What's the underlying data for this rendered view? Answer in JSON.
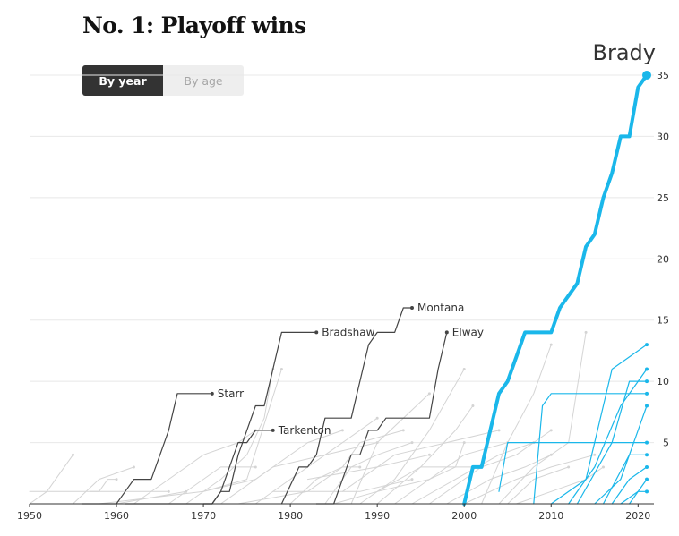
{
  "title": "No. 1: Playoff wins",
  "toggle": {
    "by_year": "By year",
    "by_age": "By age",
    "selected": "By year"
  },
  "colors": {
    "highlight": "#1ab7ea",
    "named": "#444444",
    "background_lines": "#d4d4d4",
    "active_lines": "#1ab7ea"
  },
  "chart_data": {
    "type": "line",
    "xlim": [
      1950,
      2021
    ],
    "ylim": [
      0,
      35
    ],
    "x_ticks": [
      1950,
      1960,
      1970,
      1980,
      1990,
      2000,
      2010,
      2020
    ],
    "y_ticks": [
      5,
      10,
      15,
      20,
      25,
      30,
      35
    ],
    "grid": true,
    "series": [
      {
        "name": "Brady",
        "role": "highlight",
        "x": [
          2000,
          2001,
          2002,
          2003,
          2004,
          2005,
          2006,
          2007,
          2008,
          2009,
          2010,
          2011,
          2012,
          2013,
          2014,
          2015,
          2016,
          2017,
          2018,
          2019,
          2020,
          2021
        ],
        "y": [
          0,
          3,
          3,
          6,
          9,
          10,
          12,
          14,
          14,
          14,
          14,
          16,
          17,
          18,
          21,
          22,
          25,
          27,
          30,
          30,
          34,
          35
        ]
      },
      {
        "name": "Montana",
        "role": "named",
        "x": [
          1979,
          1981,
          1982,
          1983,
          1984,
          1985,
          1986,
          1987,
          1988,
          1989,
          1990,
          1991,
          1992,
          1993,
          1994
        ],
        "y": [
          0,
          3,
          3,
          4,
          7,
          7,
          7,
          7,
          10,
          13,
          14,
          14,
          14,
          16,
          16
        ]
      },
      {
        "name": "Bradshaw",
        "role": "named",
        "x": [
          1970,
          1971,
          1972,
          1973,
          1974,
          1975,
          1976,
          1977,
          1978,
          1979,
          1980,
          1981,
          1982,
          1983
        ],
        "y": [
          0,
          0,
          1,
          1,
          4,
          6,
          8,
          8,
          11,
          14,
          14,
          14,
          14,
          14
        ]
      },
      {
        "name": "Elway",
        "role": "named",
        "x": [
          1983,
          1984,
          1985,
          1986,
          1987,
          1988,
          1989,
          1990,
          1991,
          1992,
          1993,
          1994,
          1995,
          1996,
          1997,
          1998
        ],
        "y": [
          0,
          0,
          0,
          2,
          4,
          4,
          6,
          6,
          7,
          7,
          7,
          7,
          7,
          7,
          11,
          14
        ]
      },
      {
        "name": "Starr",
        "role": "named",
        "x": [
          1956,
          1960,
          1961,
          1962,
          1963,
          1964,
          1965,
          1966,
          1967,
          1968,
          1969,
          1970,
          1971
        ],
        "y": [
          0,
          0,
          1,
          2,
          2,
          2,
          4,
          6,
          9,
          9,
          9,
          9,
          9
        ]
      },
      {
        "name": "Tarkenton",
        "role": "named",
        "x": [
          1961,
          1970,
          1971,
          1972,
          1973,
          1974,
          1975,
          1976,
          1977,
          1978
        ],
        "y": [
          0,
          0,
          0,
          1,
          3,
          5,
          5,
          6,
          6,
          6
        ]
      },
      {
        "role": "background",
        "x": [
          1950,
          1952,
          1953,
          1954,
          1955
        ],
        "y": [
          0,
          1,
          2,
          3,
          4
        ]
      },
      {
        "role": "background",
        "x": [
          1950,
          1958,
          1959,
          1960
        ],
        "y": [
          1,
          1,
          2,
          2
        ]
      },
      {
        "role": "background",
        "x": [
          1955,
          1958,
          1962
        ],
        "y": [
          0,
          2,
          3
        ]
      },
      {
        "role": "background",
        "x": [
          1957,
          1966
        ],
        "y": [
          1,
          1
        ]
      },
      {
        "role": "background",
        "x": [
          1960,
          1968
        ],
        "y": [
          0,
          1
        ]
      },
      {
        "role": "background",
        "x": [
          1962,
          1966,
          1970,
          1974,
          1976
        ],
        "y": [
          0,
          2,
          4,
          5,
          6
        ]
      },
      {
        "role": "background",
        "x": [
          1966,
          1972,
          1976
        ],
        "y": [
          0,
          3,
          3
        ]
      },
      {
        "role": "background",
        "x": [
          1968,
          1972,
          1975,
          1977,
          1978
        ],
        "y": [
          0,
          2,
          4,
          7,
          11
        ]
      },
      {
        "role": "background",
        "x": [
          1970,
          1976,
          1982,
          1986
        ],
        "y": [
          1,
          2,
          5,
          6
        ]
      },
      {
        "role": "background",
        "x": [
          1972,
          1978,
          1984,
          1990
        ],
        "y": [
          0,
          3,
          4,
          5
        ]
      },
      {
        "role": "background",
        "x": [
          1974,
          1982,
          1986,
          1988
        ],
        "y": [
          0,
          1,
          3,
          3
        ]
      },
      {
        "role": "background",
        "x": [
          1976,
          1980,
          1984,
          1986,
          1990
        ],
        "y": [
          0,
          2,
          4,
          5,
          7
        ]
      },
      {
        "role": "background",
        "x": [
          1978,
          1988,
          1994
        ],
        "y": [
          1,
          1,
          2
        ]
      },
      {
        "role": "background",
        "x": [
          1980,
          1983,
          1986,
          1988,
          1993
        ],
        "y": [
          0,
          2,
          3,
          5,
          6
        ]
      },
      {
        "role": "background",
        "x": [
          1982,
          1990,
          1996
        ],
        "y": [
          2,
          3,
          4
        ]
      },
      {
        "role": "background",
        "x": [
          1984,
          1987,
          1990,
          1994
        ],
        "y": [
          0,
          3,
          4,
          5
        ]
      },
      {
        "role": "background",
        "x": [
          1985,
          1990,
          1995,
          2002
        ],
        "y": [
          0,
          1,
          3,
          3
        ]
      },
      {
        "role": "background",
        "x": [
          1986,
          1992,
          1998,
          2004
        ],
        "y": [
          1,
          4,
          5,
          6
        ]
      },
      {
        "role": "background",
        "x": [
          1987,
          1990,
          1993,
          1996
        ],
        "y": [
          0,
          5,
          7,
          9
        ]
      },
      {
        "role": "background",
        "x": [
          1988,
          1992,
          1996,
          2000
        ],
        "y": [
          0,
          2,
          6,
          11
        ]
      },
      {
        "role": "background",
        "x": [
          1990,
          1996,
          2000,
          2005
        ],
        "y": [
          1,
          2,
          4,
          5
        ]
      },
      {
        "role": "background",
        "x": [
          1990,
          1995,
          1999,
          2001
        ],
        "y": [
          0,
          3,
          6,
          8
        ]
      },
      {
        "role": "background",
        "x": [
          1992,
          1996,
          1999,
          2000
        ],
        "y": [
          0,
          2,
          3,
          5
        ]
      },
      {
        "role": "background",
        "x": [
          1994,
          1999,
          2004,
          2008
        ],
        "y": [
          0,
          2,
          4,
          5
        ]
      },
      {
        "role": "background",
        "x": [
          1996,
          2002,
          2006,
          2010
        ],
        "y": [
          0,
          3,
          4,
          6
        ]
      },
      {
        "role": "background",
        "x": [
          1998,
          2003,
          2007,
          2010
        ],
        "y": [
          0,
          2,
          3,
          4
        ]
      },
      {
        "role": "background",
        "x": [
          2000,
          2006,
          2010,
          2015
        ],
        "y": [
          0,
          2,
          3,
          4
        ]
      },
      {
        "role": "background",
        "x": [
          2002,
          2005,
          2008,
          2010
        ],
        "y": [
          0,
          5,
          9,
          13
        ]
      },
      {
        "role": "background",
        "x": [
          2004,
          2008,
          2012,
          2014
        ],
        "y": [
          0,
          3,
          5,
          14
        ]
      },
      {
        "role": "background",
        "x": [
          2005,
          2008,
          2012
        ],
        "y": [
          0,
          2,
          3
        ]
      },
      {
        "role": "background",
        "x": [
          2006,
          2010,
          2014,
          2016
        ],
        "y": [
          0,
          1,
          2,
          3
        ]
      },
      {
        "role": "background",
        "x": [
          1958,
          1970,
          1975,
          1979
        ],
        "y": [
          0,
          1,
          2,
          11
        ]
      },
      {
        "role": "active",
        "x": [
          2004,
          2005,
          2006,
          2008,
          2011,
          2021
        ],
        "y": [
          1,
          5,
          5,
          5,
          5,
          5
        ]
      },
      {
        "role": "active",
        "x": [
          2008,
          2009,
          2010,
          2011,
          2021
        ],
        "y": [
          0,
          8,
          9,
          9,
          9
        ]
      },
      {
        "role": "active",
        "x": [
          2010,
          2014,
          2017,
          2021
        ],
        "y": [
          0,
          2,
          11,
          13
        ]
      },
      {
        "role": "active",
        "x": [
          2012,
          2015,
          2018,
          2021
        ],
        "y": [
          0,
          3,
          8,
          11
        ]
      },
      {
        "role": "active",
        "x": [
          2013,
          2017,
          2019,
          2021
        ],
        "y": [
          0,
          5,
          10,
          10
        ]
      },
      {
        "role": "active",
        "x": [
          2015,
          2018,
          2020,
          2021
        ],
        "y": [
          0,
          2,
          6,
          8
        ]
      },
      {
        "role": "active",
        "x": [
          2016,
          2019,
          2021
        ],
        "y": [
          0,
          4,
          4
        ]
      },
      {
        "role": "active",
        "x": [
          2017,
          2019,
          2021
        ],
        "y": [
          0,
          2,
          3
        ]
      },
      {
        "role": "active",
        "x": [
          2018,
          2020,
          2021
        ],
        "y": [
          0,
          1,
          1
        ]
      },
      {
        "role": "active",
        "x": [
          2019,
          2021
        ],
        "y": [
          0,
          2
        ]
      }
    ]
  }
}
